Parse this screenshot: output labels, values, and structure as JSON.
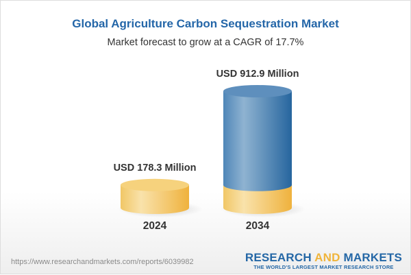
{
  "title": "Global Agriculture Carbon Sequestration Market",
  "subtitle": "Market forecast to grow at a CAGR of 17.7%",
  "chart_data": {
    "type": "bar",
    "style": "3d-cylinder",
    "categories": [
      "2024",
      "2034"
    ],
    "values": [
      178.3,
      912.9
    ],
    "value_labels": [
      "USD 178.3 Million",
      "USD 912.9 Million"
    ],
    "unit": "USD Million",
    "cagr": "17.7%",
    "colors": {
      "base": "#f2c562",
      "growth": "#2f6fa6"
    }
  },
  "footer": {
    "url": "https://www.researchandmarkets.com/reports/6039982",
    "logo_research": "RESEARCH",
    "logo_and": "AND",
    "logo_markets": "MARKETS",
    "tagline": "THE WORLD'S LARGEST MARKET RESEARCH STORE"
  }
}
